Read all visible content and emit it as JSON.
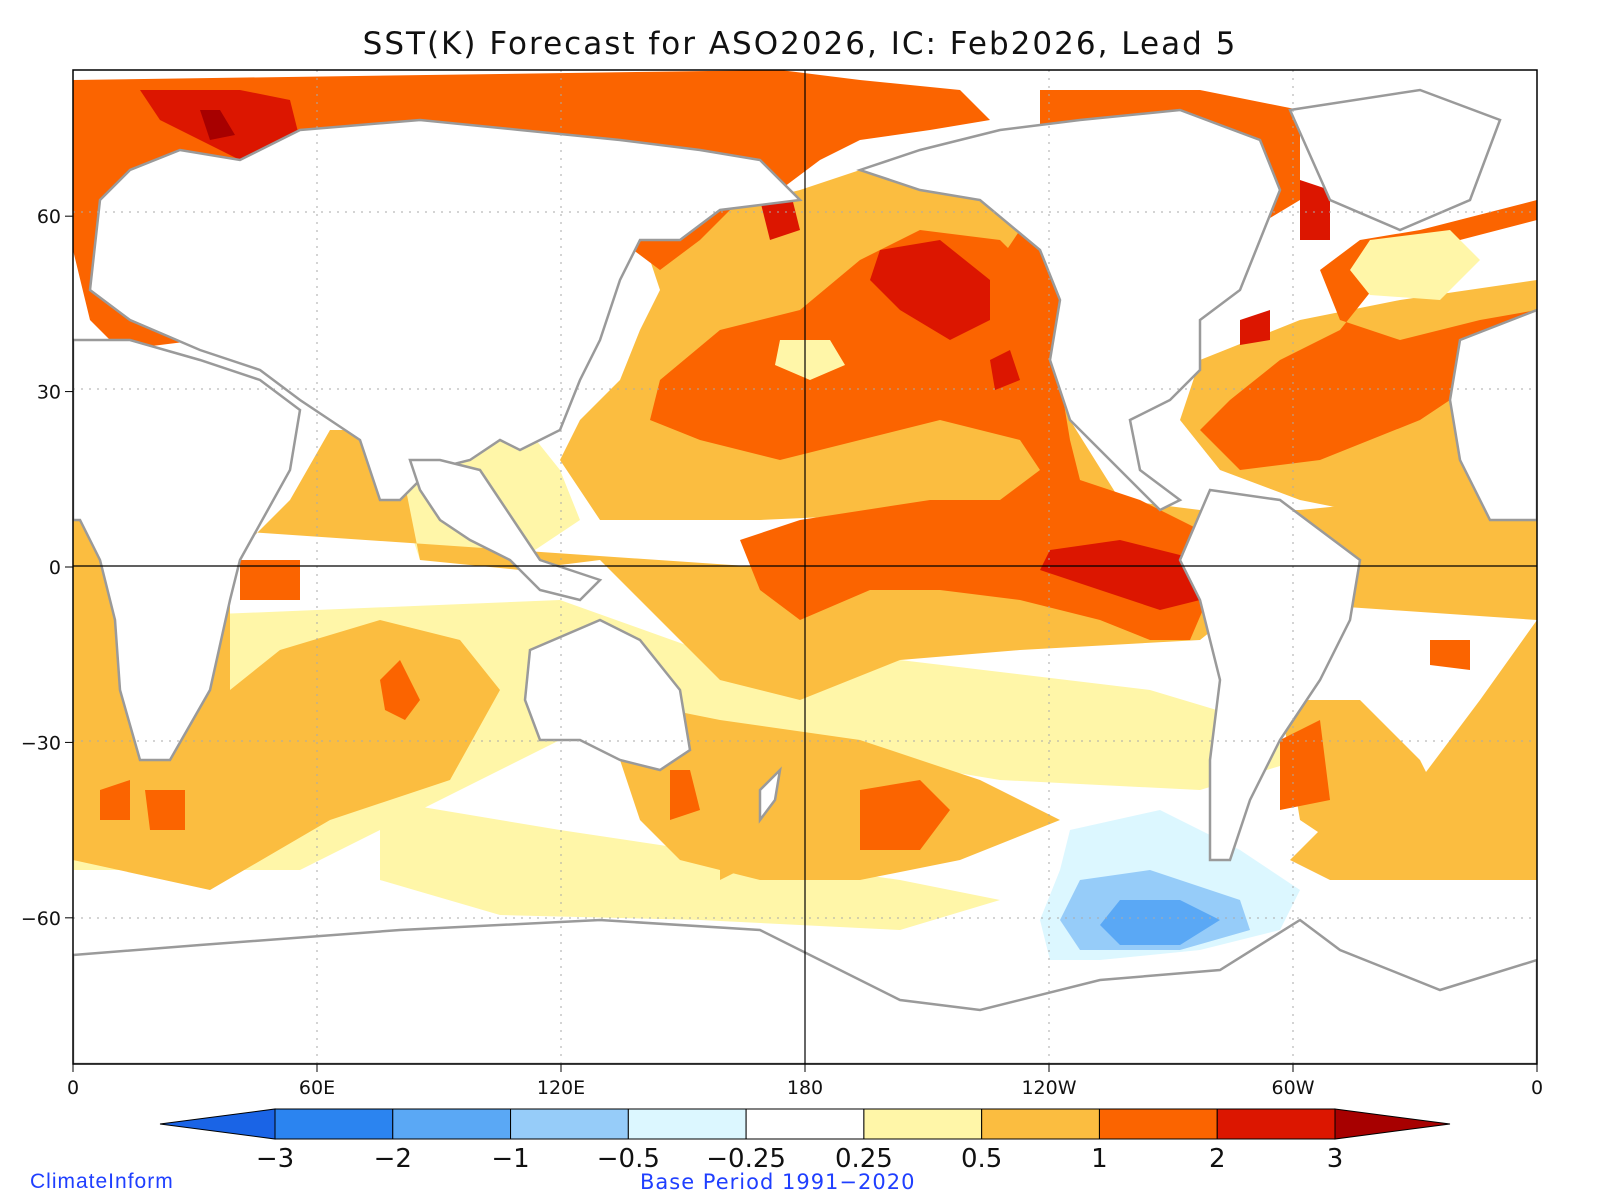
{
  "title": "SST(K) Forecast for ASO2026, IC: Feb2026, Lead 5",
  "map": {
    "lon_labels": [
      "0",
      "60E",
      "120E",
      "180",
      "120W",
      "60W",
      "0"
    ],
    "lat_labels": [
      "60",
      "30",
      "0",
      "-30",
      "-60"
    ],
    "lat_values": [
      60,
      30,
      0,
      -30,
      -60
    ],
    "lon_values": [
      0,
      60,
      120,
      180,
      240,
      300,
      360
    ],
    "lat_range": [
      -85,
      85
    ],
    "lon_range": [
      0,
      360
    ],
    "land_color": "#ffffff",
    "coast_color": "#9a9a9a",
    "anomaly_regions": [
      {
        "name": "north-atlantic-arctic-warm",
        "level": "1 to 2"
      },
      {
        "name": "barents-sea-hot",
        "level": "2 to 3"
      },
      {
        "name": "north-pacific-warm-blob",
        "level": "2 to 3"
      },
      {
        "name": "tropical-pacific-warm-tongue",
        "level": "1 to 2"
      },
      {
        "name": "nino-region-hot",
        "level": "2 to 3"
      },
      {
        "name": "southeast-pacific-cool",
        "level": "-2 to -0.25"
      }
    ]
  },
  "colorbar": {
    "levels": [
      {
        "color": "#1a64e6",
        "label": "−3"
      },
      {
        "color": "#2b84f0",
        "label": "−2"
      },
      {
        "color": "#5aa8f5",
        "label": "−1"
      },
      {
        "color": "#96ccf9",
        "label": "−0.5"
      },
      {
        "color": "#dcf7ff",
        "label": "−0.25"
      },
      {
        "color": "#ffffff",
        "label": "0.25"
      },
      {
        "color": "#fff6a8",
        "label": "0.5"
      },
      {
        "color": "#fbbd40",
        "label": "1"
      },
      {
        "color": "#fb6400",
        "label": "2"
      },
      {
        "color": "#dc1600",
        "label": "3"
      },
      {
        "color": "#a70000",
        "label": ""
      }
    ]
  },
  "footer": {
    "credit": "ClimateInform",
    "base_period": "Base Period 1991−2020"
  }
}
